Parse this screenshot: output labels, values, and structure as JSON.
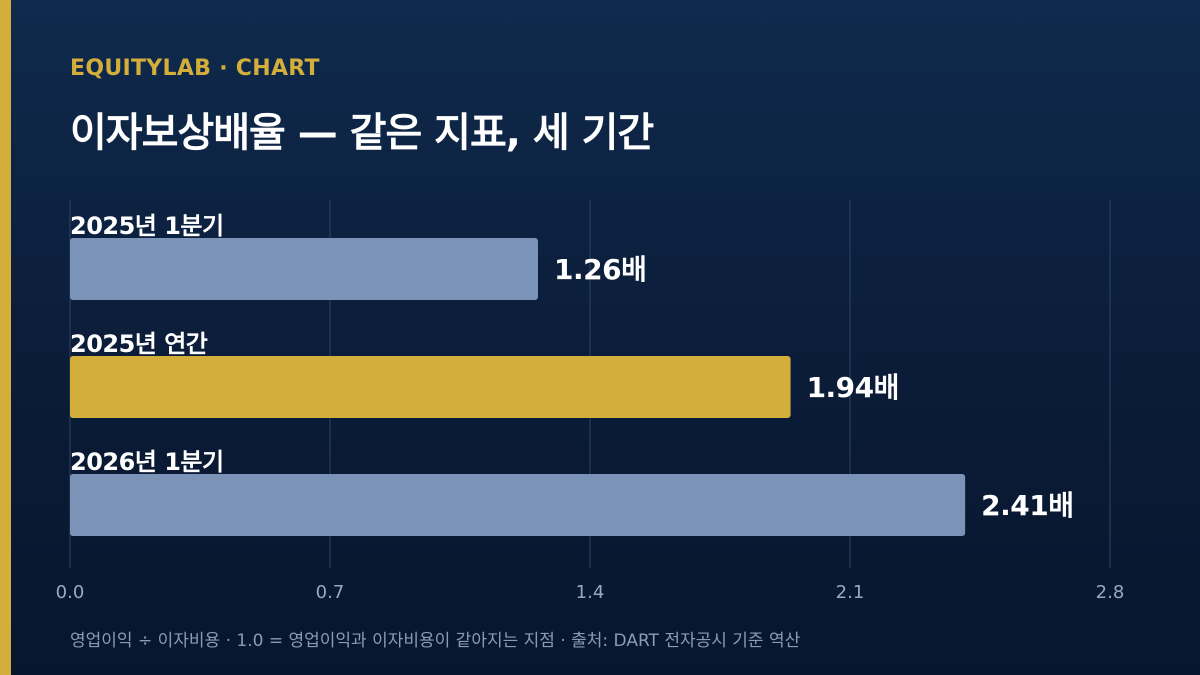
{
  "header": {
    "eyebrow": "EQUITYLAB · CHART",
    "title": "이자보상배율 — 같은 지표, 세 기간"
  },
  "footnote": "영업이익 ÷ 이자비용 · 1.0 = 영업이익과 이자비용이 같아지는 지점 · 출처: DART 전자공시 기준 역산",
  "colors": {
    "accent": "#d4ae3a",
    "bar_default": "#7b93b6",
    "bar_highlight": "#d4ae3a",
    "grid": "#2c4466",
    "tick_text": "#9aa8bd",
    "value_text": "#ffffff"
  },
  "chart_data": {
    "type": "bar",
    "orientation": "horizontal",
    "categories": [
      "2025년 1분기",
      "2025년 연간",
      "2026년 1분기"
    ],
    "values": [
      1.26,
      1.94,
      2.41
    ],
    "value_labels": [
      "1.26배",
      "1.94배",
      "2.41배"
    ],
    "highlight_index": 1,
    "xlim": [
      0,
      2.8
    ],
    "xticks": [
      0.0,
      0.7,
      1.4,
      2.1,
      2.8
    ],
    "xtick_labels": [
      "0.0",
      "0.7",
      "1.4",
      "2.1",
      "2.8"
    ],
    "grid": true,
    "legend": "none"
  }
}
